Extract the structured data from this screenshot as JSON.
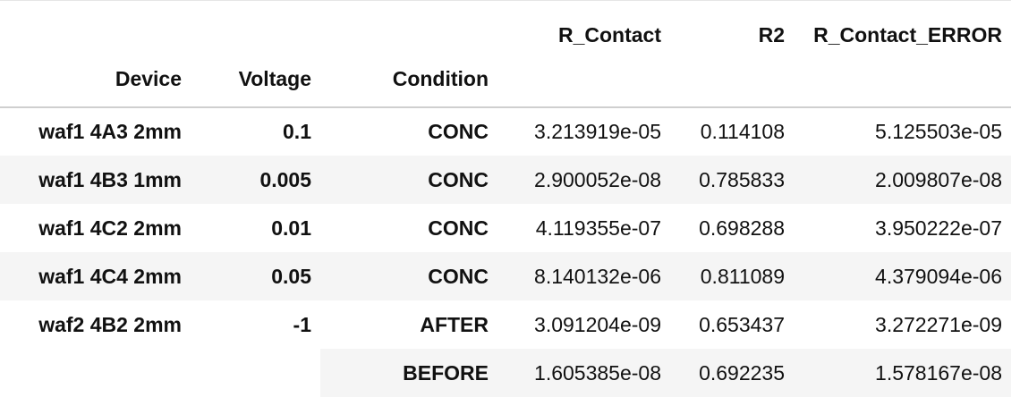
{
  "table": {
    "column_headers": [
      "R_Contact",
      "R2",
      "R_Contact_ERROR"
    ],
    "index_names": [
      "Device",
      "Voltage",
      "Condition"
    ],
    "rows": [
      {
        "device": "waf1 4A3 2mm",
        "voltage": "0.1",
        "condition": "CONC",
        "r_contact": "3.213919e-05",
        "r2": "0.114108",
        "r_contact_error": "5.125503e-05"
      },
      {
        "device": "waf1 4B3 1mm",
        "voltage": "0.005",
        "condition": "CONC",
        "r_contact": "2.900052e-08",
        "r2": "0.785833",
        "r_contact_error": "2.009807e-08"
      },
      {
        "device": "waf1 4C2 2mm",
        "voltage": "0.01",
        "condition": "CONC",
        "r_contact": "4.119355e-07",
        "r2": "0.698288",
        "r_contact_error": "3.950222e-07"
      },
      {
        "device": "waf1 4C4 2mm",
        "voltage": "0.05",
        "condition": "CONC",
        "r_contact": "8.140132e-06",
        "r2": "0.811089",
        "r_contact_error": "4.379094e-06"
      },
      {
        "device": "waf2 4B2 2mm",
        "voltage": "-1",
        "condition": "AFTER",
        "r_contact": "3.091204e-09",
        "r2": "0.653437",
        "r_contact_error": "3.272271e-09"
      },
      {
        "device": "",
        "voltage": "",
        "condition": "BEFORE",
        "r_contact": "1.605385e-08",
        "r2": "0.692235",
        "r_contact_error": "1.578167e-08"
      }
    ]
  }
}
